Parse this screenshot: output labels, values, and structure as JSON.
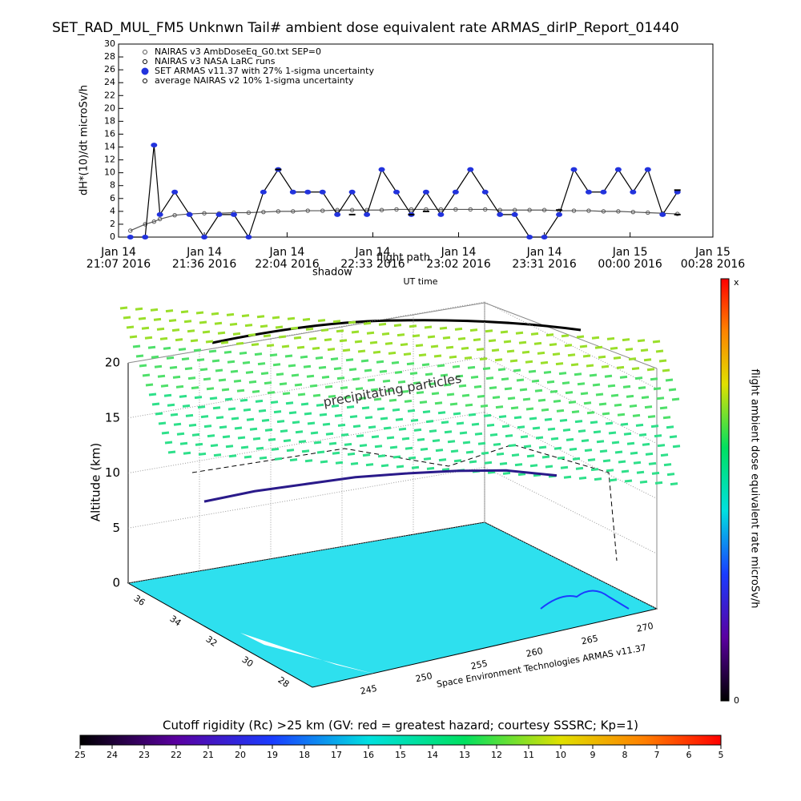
{
  "chart_data": [
    {
      "type": "line",
      "title": "SET_RAD_MUL_FM5 Unknwn Tail#  ambient dose equivalent rate ARMAS_dirIP_Report_01440",
      "x_label": "UT time",
      "y_label": "dH*(10)/dt microSv/h",
      "x": [
        "2016-01-14T21:11",
        "2016-01-14T21:16",
        "2016-01-14T21:19",
        "2016-01-14T21:21",
        "2016-01-14T21:26",
        "2016-01-14T21:31",
        "2016-01-14T21:36",
        "2016-01-14T21:41",
        "2016-01-14T21:46",
        "2016-01-14T21:51",
        "2016-01-14T21:56",
        "2016-01-14T22:01",
        "2016-01-14T22:06",
        "2016-01-14T22:11",
        "2016-01-14T22:16",
        "2016-01-14T22:21",
        "2016-01-14T22:26",
        "2016-01-14T22:31",
        "2016-01-14T22:36",
        "2016-01-14T22:41",
        "2016-01-14T22:46",
        "2016-01-14T22:51",
        "2016-01-14T22:56",
        "2016-01-14T23:01",
        "2016-01-14T23:06",
        "2016-01-14T23:11",
        "2016-01-14T23:16",
        "2016-01-14T23:21",
        "2016-01-14T23:26",
        "2016-01-14T23:31",
        "2016-01-14T23:36",
        "2016-01-14T23:41",
        "2016-01-14T23:46",
        "2016-01-14T23:51",
        "2016-01-14T23:56",
        "2016-01-15T00:01",
        "2016-01-15T00:06",
        "2016-01-15T00:11",
        "2016-01-15T00:16"
      ],
      "series": [
        {
          "name": "NAIRAS v3 AmbDoseEq_G0.txt SEP=0",
          "color": "#555555",
          "values": [
            1,
            2,
            2.4,
            2.8,
            3.4,
            3.6,
            3.7,
            3.7,
            3.8,
            3.8,
            3.9,
            4,
            4,
            4.1,
            4.1,
            4.2,
            4.2,
            4.2,
            4.2,
            4.3,
            4.3,
            4.3,
            4.3,
            4.3,
            4.3,
            4.3,
            4.2,
            4.2,
            4.2,
            4.2,
            4.1,
            4.1,
            4.1,
            4,
            4,
            3.9,
            3.8,
            3.7,
            3.6
          ]
        },
        {
          "name": "NAIRAS v3 NASA LaRC runs",
          "color": "#000000",
          "values": [
            null,
            null,
            null,
            null,
            null,
            null,
            null,
            null,
            null,
            null,
            null,
            null,
            null,
            null,
            null,
            null,
            3.5,
            null,
            null,
            null,
            null,
            4,
            null,
            null,
            null,
            null,
            null,
            null,
            null,
            null,
            4.2,
            null,
            null,
            null,
            null,
            null,
            null,
            null,
            3.5
          ]
        },
        {
          "name": "SET ARMAS v11.37 with 27% 1-sigma uncertainty",
          "color": "#2233dd",
          "values": [
            0,
            0,
            14.3,
            3.5,
            7,
            3.5,
            0,
            3.5,
            3.5,
            0,
            7,
            10.5,
            7,
            7,
            7,
            3.5,
            7,
            3.5,
            10.5,
            7,
            3.5,
            7,
            3.5,
            7,
            10.5,
            7,
            3.5,
            3.5,
            0,
            0,
            3.5,
            10.5,
            7,
            7,
            10.5,
            7,
            10.5,
            3.5,
            7
          ]
        },
        {
          "name": "average NAIRAS v2 10% 1-sigma uncertainty",
          "color": "#000000",
          "values": [
            null,
            null,
            null,
            null,
            null,
            null,
            null,
            null,
            null,
            null,
            null,
            10.5,
            null,
            null,
            null,
            null,
            null,
            null,
            null,
            null,
            3.5,
            null,
            null,
            null,
            null,
            null,
            null,
            null,
            null,
            null,
            null,
            null,
            null,
            null,
            null,
            null,
            null,
            null,
            7.3
          ]
        }
      ],
      "xlim": [
        "2016-01-14T21:07",
        "2016-01-15T00:28"
      ],
      "xticks": [
        {
          "value": "2016-01-14T21:07",
          "label": "Jan 14 21:07 2016"
        },
        {
          "value": "2016-01-14T21:36",
          "label": "Jan 14 21:36 2016"
        },
        {
          "value": "2016-01-14T22:04",
          "label": "Jan 14 22:04 2016"
        },
        {
          "value": "2016-01-14T22:33",
          "label": "Jan 14 22:33 2016"
        },
        {
          "value": "2016-01-14T23:02",
          "label": "Jan 14 23:02 2016"
        },
        {
          "value": "2016-01-14T23:31",
          "label": "Jan 14 23:31 2016"
        },
        {
          "value": "2016-01-15T00:00",
          "label": "Jan 15 00:00 2016"
        },
        {
          "value": "2016-01-15T00:28",
          "label": "Jan 15 00:28 2016"
        }
      ],
      "ylim": [
        0,
        30
      ],
      "yticks": [
        0,
        2,
        4,
        6,
        8,
        10,
        12,
        14,
        16,
        18,
        20,
        22,
        24,
        26,
        28,
        30
      ]
    },
    {
      "type": "surface3d",
      "annotations": [
        "shadow",
        "flight path",
        "precipitating particles"
      ],
      "z_label": "Altitude (km)",
      "credit": "Space Environment Technologies ARMAS v11.37",
      "zlim": [
        0,
        20
      ],
      "zticks": [
        0,
        5,
        10,
        15,
        20
      ],
      "lat_ticks": [
        36,
        34,
        32,
        30,
        28
      ],
      "lon_ticks": [
        245,
        250,
        255,
        260,
        265,
        270
      ],
      "flight_altitude": [
        8.5,
        9.3,
        9.8,
        10.3,
        10.5,
        10.6,
        10.5,
        9.9
      ],
      "color": "#2a1a8a",
      "colorbar_title": "flight ambient dose equivalent rate microSv/h",
      "colorbar_labels": [
        "x",
        "0"
      ]
    },
    {
      "type": "colorbar",
      "title": "Cutoff rigidity (Rc) >25 km (GV: red = greatest hazard; courtesy SSSRC; Kp=1)",
      "clim": [
        25,
        5
      ],
      "ticks": [
        25,
        24,
        23,
        22,
        21,
        20,
        19,
        18,
        17,
        16,
        15,
        14,
        13,
        12,
        11,
        10,
        9,
        8,
        7,
        6,
        5
      ]
    }
  ]
}
